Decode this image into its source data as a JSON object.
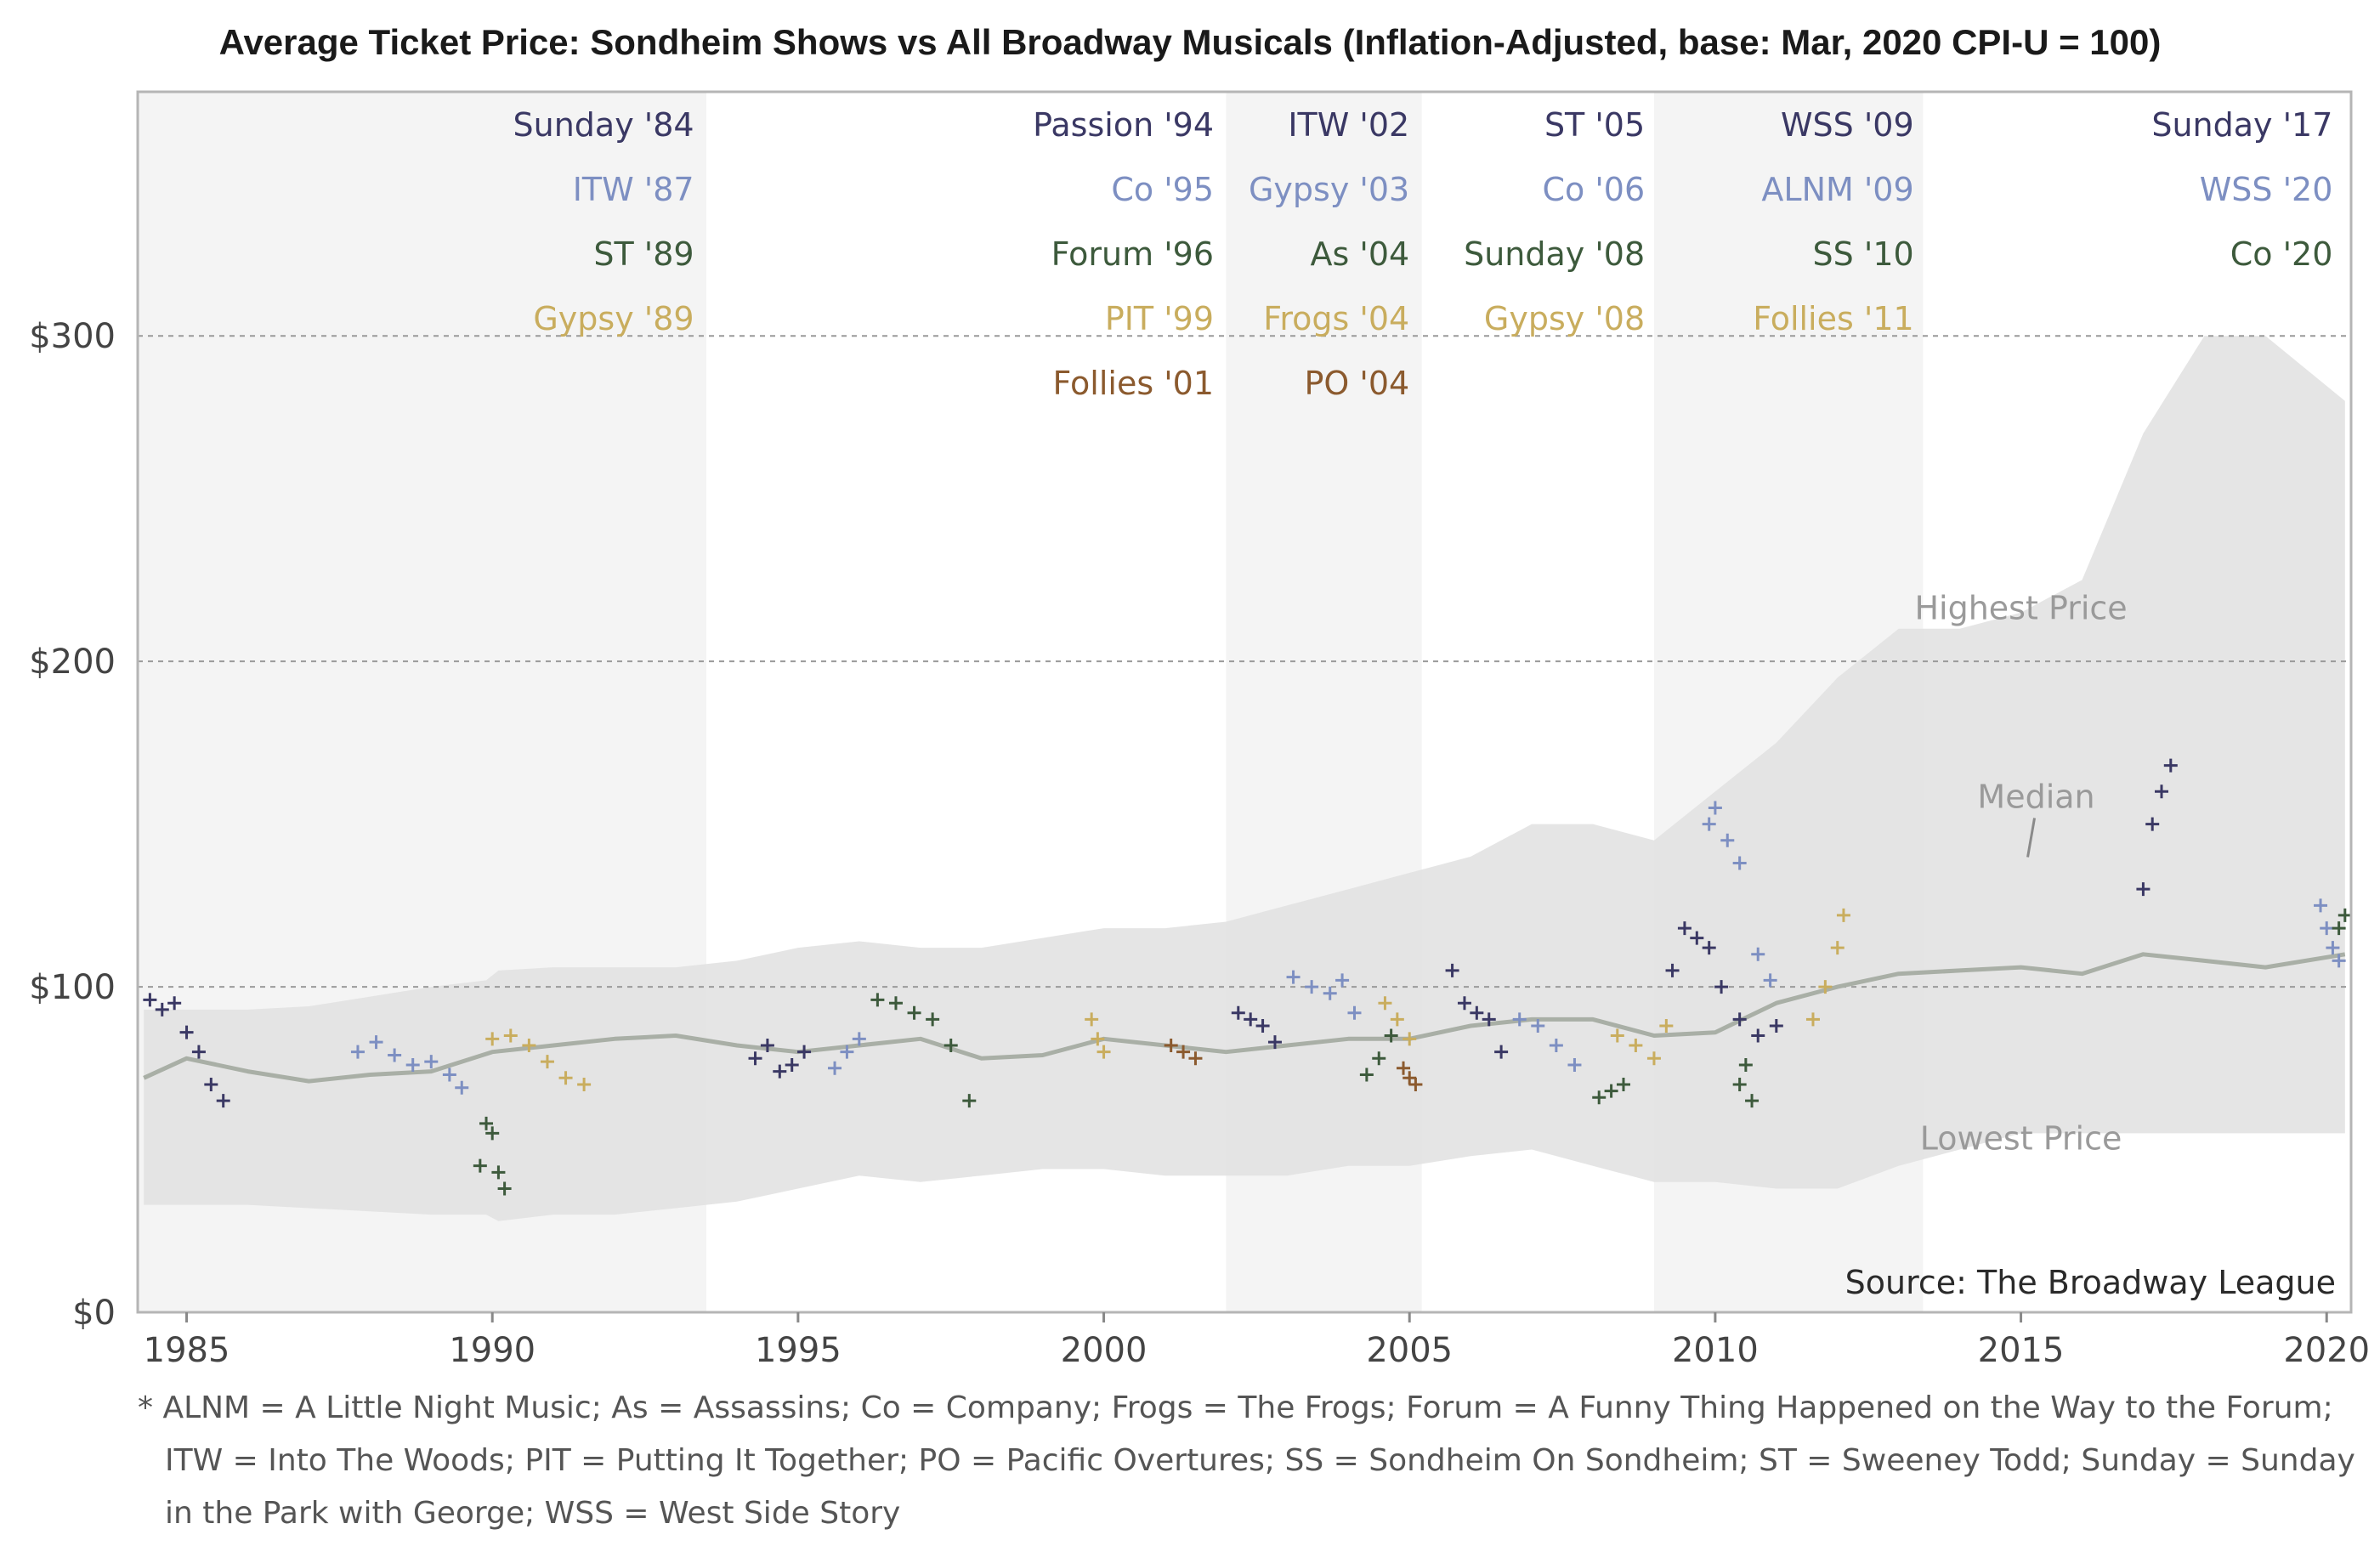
{
  "chart_data": {
    "type": "scatter",
    "title": "Average Ticket Price: Sondheim Shows vs All Broadway Musicals (Inflation-Adjusted, base: Mar, 2020 CPI-U = 100)",
    "xlim": [
      1984.2,
      2020.4
    ],
    "ylim": [
      0,
      375
    ],
    "x_ticks": [
      {
        "value": 1985,
        "label": "1985"
      },
      {
        "value": 1990,
        "label": "1990"
      },
      {
        "value": 1995,
        "label": "1995"
      },
      {
        "value": 2000,
        "label": "2000"
      },
      {
        "value": 2005,
        "label": "2005"
      },
      {
        "value": 2010,
        "label": "2010"
      },
      {
        "value": 2015,
        "label": "2015"
      },
      {
        "value": 2020,
        "label": "2020"
      }
    ],
    "y_ticks": [
      {
        "value": 0,
        "label": "$0"
      },
      {
        "value": 100,
        "label": "$100"
      },
      {
        "value": 200,
        "label": "$200"
      },
      {
        "value": 300,
        "label": "$300"
      }
    ],
    "colors": {
      "0": "#3a3864",
      "1": "#7d8fc2",
      "2": "#3d5a3c",
      "3": "#c9ad5e",
      "4": "#8b5a2e",
      "median": "#a9afa6",
      "range": "#e2e2e2",
      "band": "#f4f4f4"
    },
    "bands": [
      {
        "x0": 1984.2,
        "x1": 1993.5
      },
      {
        "x0": 2002.0,
        "x1": 2005.2
      },
      {
        "x0": 2009.0,
        "x1": 2013.4
      }
    ],
    "label_columns": [
      {
        "x": 1993.3,
        "labels": [
          {
            "text": "Sunday '84",
            "color": 0
          },
          {
            "text": "ITW '87",
            "color": 1
          },
          {
            "text": "ST '89",
            "color": 2
          },
          {
            "text": "Gypsy '89",
            "color": 3
          }
        ]
      },
      {
        "x": 2001.8,
        "labels": [
          {
            "text": "Passion '94",
            "color": 0
          },
          {
            "text": "Co '95",
            "color": 1
          },
          {
            "text": "Forum '96",
            "color": 2
          },
          {
            "text": "PIT '99",
            "color": 3
          },
          {
            "text": "Follies '01",
            "color": 4
          }
        ]
      },
      {
        "x": 2005.0,
        "labels": [
          {
            "text": "ITW '02",
            "color": 0
          },
          {
            "text": "Gypsy '03",
            "color": 1
          },
          {
            "text": "As '04",
            "color": 2
          },
          {
            "text": "Frogs '04",
            "color": 3
          },
          {
            "text": "PO '04",
            "color": 4
          }
        ]
      },
      {
        "x": 2008.85,
        "labels": [
          {
            "text": "ST '05",
            "color": 0
          },
          {
            "text": "Co '06",
            "color": 1
          },
          {
            "text": "Sunday '08",
            "color": 2
          },
          {
            "text": "Gypsy '08",
            "color": 3
          }
        ]
      },
      {
        "x": 2013.25,
        "labels": [
          {
            "text": "WSS '09",
            "color": 0
          },
          {
            "text": "ALNM '09",
            "color": 1
          },
          {
            "text": "SS '10",
            "color": 2
          },
          {
            "text": "Follies '11",
            "color": 3
          }
        ]
      },
      {
        "x": 2020.1,
        "labels": [
          {
            "text": "Sunday '17",
            "color": 0
          },
          {
            "text": "WSS '20",
            "color": 1
          },
          {
            "text": "Co '20",
            "color": 2
          }
        ]
      }
    ],
    "range_series": {
      "x": [
        1984.3,
        1985,
        1986,
        1987,
        1988,
        1989,
        1989.9,
        1990.1,
        1991,
        1992,
        1993,
        1994,
        1995,
        1996,
        1997,
        1998,
        1999,
        2000,
        2001,
        2002,
        2003,
        2004,
        2005,
        2006,
        2007,
        2008,
        2009,
        2010,
        2011,
        2012,
        2013,
        2014,
        2015,
        2016,
        2017,
        2018,
        2019,
        2020.3
      ],
      "low": [
        33,
        33,
        33,
        32,
        31,
        30,
        30,
        28,
        30,
        30,
        32,
        34,
        38,
        42,
        40,
        42,
        44,
        44,
        42,
        42,
        42,
        45,
        45,
        48,
        50,
        45,
        40,
        40,
        38,
        38,
        45,
        50,
        55,
        55,
        55,
        55,
        55,
        55
      ],
      "high": [
        93,
        93,
        93,
        94,
        97,
        100,
        102,
        105,
        106,
        106,
        106,
        108,
        112,
        114,
        112,
        112,
        115,
        118,
        118,
        120,
        125,
        130,
        135,
        140,
        150,
        150,
        145,
        160,
        175,
        195,
        210,
        210,
        215,
        225,
        270,
        300,
        300,
        280
      ]
    },
    "median_series": {
      "name": "Median",
      "x": [
        1984.3,
        1985,
        1986,
        1987,
        1988,
        1989,
        1990,
        1991,
        1992,
        1993,
        1994,
        1995,
        1996,
        1997,
        1998,
        1999,
        2000,
        2001,
        2002,
        2003,
        2004,
        2005,
        2006,
        2007,
        2008,
        2009,
        2010,
        2011,
        2012,
        2013,
        2014,
        2015,
        2016,
        2017,
        2018,
        2019,
        2020.3
      ],
      "y": [
        72,
        78,
        74,
        71,
        73,
        74,
        80,
        82,
        84,
        85,
        82,
        80,
        82,
        84,
        78,
        79,
        84,
        82,
        80,
        82,
        84,
        84,
        88,
        90,
        90,
        85,
        86,
        95,
        100,
        104,
        105,
        106,
        104,
        110,
        108,
        106,
        110
      ]
    },
    "annotations": [
      {
        "text": "Highest Price",
        "x": 2015.0,
        "y": 213
      },
      {
        "text": "Median",
        "x": 2015.25,
        "y": 155
      },
      {
        "text": "Lowest Price",
        "x": 2015.0,
        "y": 50
      },
      {
        "text": "Source: The Broadway League",
        "x": 2020.4,
        "y": 0
      }
    ],
    "series": [
      {
        "name": "Sunday '84",
        "color": 0,
        "x": [
          1984.4,
          1984.6,
          1984.8,
          1985.0,
          1985.2,
          1985.4,
          1985.6
        ],
        "y": [
          96,
          93,
          95,
          86,
          80,
          70,
          65
        ]
      },
      {
        "name": "ITW '87",
        "color": 1,
        "x": [
          1987.8,
          1988.1,
          1988.4,
          1988.7,
          1989.0,
          1989.3,
          1989.5
        ],
        "y": [
          80,
          83,
          79,
          76,
          77,
          73,
          69
        ]
      },
      {
        "name": "ST '89",
        "color": 2,
        "x": [
          1989.8,
          1989.9,
          1990.0,
          1990.1,
          1990.2
        ],
        "y": [
          45,
          58,
          55,
          43,
          38
        ]
      },
      {
        "name": "Gypsy '89",
        "color": 3,
        "x": [
          1990.0,
          1990.3,
          1990.6,
          1990.9,
          1991.2,
          1991.5
        ],
        "y": [
          84,
          85,
          82,
          77,
          72,
          70
        ]
      },
      {
        "name": "Passion '94",
        "color": 0,
        "x": [
          1994.3,
          1994.5,
          1994.7,
          1994.9,
          1995.1
        ],
        "y": [
          78,
          82,
          74,
          76,
          80
        ]
      },
      {
        "name": "Co '95",
        "color": 1,
        "x": [
          1995.6,
          1995.8,
          1996.0
        ],
        "y": [
          75,
          80,
          84
        ]
      },
      {
        "name": "Forum '96",
        "color": 2,
        "x": [
          1996.3,
          1996.6,
          1996.9,
          1997.2,
          1997.5,
          1997.8
        ],
        "y": [
          96,
          95,
          92,
          90,
          82,
          65
        ]
      },
      {
        "name": "PIT '99",
        "color": 3,
        "x": [
          1999.8,
          1999.9,
          2000.0
        ],
        "y": [
          90,
          84,
          80
        ]
      },
      {
        "name": "Follies '01",
        "color": 4,
        "x": [
          2001.1,
          2001.3,
          2001.5
        ],
        "y": [
          82,
          80,
          78
        ]
      },
      {
        "name": "ITW '02",
        "color": 0,
        "x": [
          2002.2,
          2002.4,
          2002.6,
          2002.8
        ],
        "y": [
          92,
          90,
          88,
          83
        ]
      },
      {
        "name": "Gypsy '03",
        "color": 1,
        "x": [
          2003.1,
          2003.4,
          2003.7,
          2003.9,
          2004.1
        ],
        "y": [
          103,
          100,
          98,
          102,
          92
        ]
      },
      {
        "name": "As '04",
        "color": 2,
        "x": [
          2004.3,
          2004.5,
          2004.7
        ],
        "y": [
          73,
          78,
          85
        ]
      },
      {
        "name": "Frogs '04",
        "color": 3,
        "x": [
          2004.6,
          2004.8,
          2005.0
        ],
        "y": [
          95,
          90,
          84
        ]
      },
      {
        "name": "PO '04",
        "color": 4,
        "x": [
          2004.9,
          2005.0,
          2005.1
        ],
        "y": [
          75,
          72,
          70
        ]
      },
      {
        "name": "ST '05",
        "color": 0,
        "x": [
          2005.7,
          2005.9,
          2006.1,
          2006.3,
          2006.5
        ],
        "y": [
          105,
          95,
          92,
          90,
          80
        ]
      },
      {
        "name": "Co '06",
        "color": 1,
        "x": [
          2006.8,
          2007.1,
          2007.4,
          2007.7
        ],
        "y": [
          90,
          88,
          82,
          76
        ]
      },
      {
        "name": "Sunday '08",
        "color": 2,
        "x": [
          2008.1,
          2008.3,
          2008.5
        ],
        "y": [
          66,
          68,
          70
        ]
      },
      {
        "name": "Gypsy '08",
        "color": 3,
        "x": [
          2008.4,
          2008.7,
          2009.0,
          2009.2
        ],
        "y": [
          85,
          82,
          78,
          88
        ]
      },
      {
        "name": "WSS '09",
        "color": 0,
        "x": [
          2009.3,
          2009.5,
          2009.7,
          2009.9,
          2010.1,
          2010.4,
          2010.7,
          2011.0
        ],
        "y": [
          105,
          118,
          115,
          112,
          100,
          90,
          85,
          88
        ]
      },
      {
        "name": "ALNM '09",
        "color": 1,
        "x": [
          2009.9,
          2010.0,
          2010.2,
          2010.4,
          2010.7,
          2010.9
        ],
        "y": [
          150,
          155,
          145,
          138,
          110,
          102
        ]
      },
      {
        "name": "SS '10",
        "color": 2,
        "x": [
          2010.4,
          2010.5,
          2010.6
        ],
        "y": [
          70,
          76,
          65
        ]
      },
      {
        "name": "Follies '11",
        "color": 3,
        "x": [
          2011.6,
          2011.8,
          2012.0,
          2012.1
        ],
        "y": [
          90,
          100,
          112,
          122
        ]
      },
      {
        "name": "Sunday '17",
        "color": 0,
        "x": [
          2017.0,
          2017.15,
          2017.3,
          2017.45
        ],
        "y": [
          130,
          150,
          160,
          168
        ]
      },
      {
        "name": "WSS '20",
        "color": 1,
        "x": [
          2019.9,
          2020.0,
          2020.1,
          2020.2
        ],
        "y": [
          125,
          118,
          112,
          108
        ]
      },
      {
        "name": "Co '20",
        "color": 2,
        "x": [
          2020.2,
          2020.3
        ],
        "y": [
          118,
          122
        ]
      }
    ]
  },
  "footnote": {
    "lines": [
      "* ALNM = A Little Night Music;  As = Assassins;  Co = Company;  Frogs = The Frogs; Forum = A Funny Thing Happened on the Way to the Forum;",
      "ITW = Into The Woods; PIT = Putting It Together; PO = Pacific Overtures; SS = Sondheim On Sondheim;  ST = Sweeney Todd;  Sunday = Sunday",
      "in the Park with George; WSS = West Side Story"
    ]
  }
}
